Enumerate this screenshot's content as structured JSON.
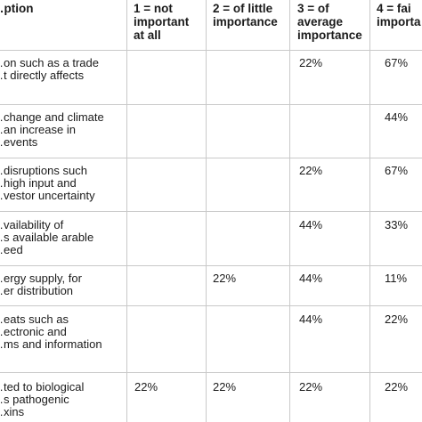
{
  "table": {
    "headers": [
      "…ption",
      "1 = not\nimportant\nat all",
      "2 = of little\nimportance",
      "3 = of\naverage\nimportance",
      "4 = fai\nimporta"
    ],
    "rows": [
      {
        "description": "…on such as a trade\n…t directly affects",
        "c1": "",
        "c2": "",
        "c3": "22%",
        "c4": "67%"
      },
      {
        "description": "…change and climate\n…an increase in\n…events",
        "c1": "",
        "c2": "",
        "c3": "",
        "c4": "44%"
      },
      {
        "description": "…disruptions such\n…high input and\n…vestor uncertainty",
        "c1": "",
        "c2": "",
        "c3": "22%",
        "c4": "67%"
      },
      {
        "description": "…vailability of\n…s available arable\n…eed",
        "c1": "",
        "c2": "",
        "c3": "44%",
        "c4": "33%"
      },
      {
        "description": "…ergy supply, for\n…er distribution",
        "c1": "",
        "c2": "22%",
        "c3": "44%",
        "c4": "11%"
      },
      {
        "description": "…eats such as\n…ectronic and\n…ms and information",
        "c1": "",
        "c2": "",
        "c3": "44%",
        "c4": "22%"
      },
      {
        "description": "…ted to biological\n…s pathogenic\n…xins",
        "c1": "22%",
        "c2": "22%",
        "c3": "22%",
        "c4": "22%"
      }
    ]
  }
}
